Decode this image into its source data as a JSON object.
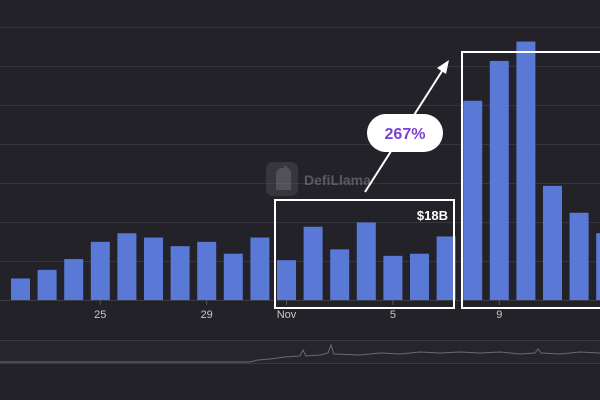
{
  "watermark": {
    "text": "DefiLlama",
    "icon": "llama-logo-icon"
  },
  "annotations": {
    "growth_label": "267%",
    "value_label": "$18B"
  },
  "colors": {
    "background": "#222228",
    "bar": "#5a78d6",
    "grid": "#35353d",
    "axis_text": "#c8c8cc",
    "highlight_box": "#ffffff",
    "growth_text": "#7b3fd4",
    "brush_line": "#6a6a70"
  },
  "chart_data": {
    "type": "bar",
    "x_tick_labels": [
      "25",
      "29",
      "Nov",
      "5",
      "9"
    ],
    "values": [
      2,
      2.8,
      3.8,
      5.4,
      6.2,
      5.8,
      5.0,
      5.4,
      4.3,
      5.8,
      3.7,
      6.8,
      4.7,
      7.2,
      4.1,
      4.3,
      5.9,
      18.5,
      22.2,
      24.0,
      10.6,
      8.1,
      6.2
    ],
    "ylim": [
      0,
      26
    ],
    "grid": true,
    "xlabel": "",
    "ylabel": "",
    "title": ""
  }
}
